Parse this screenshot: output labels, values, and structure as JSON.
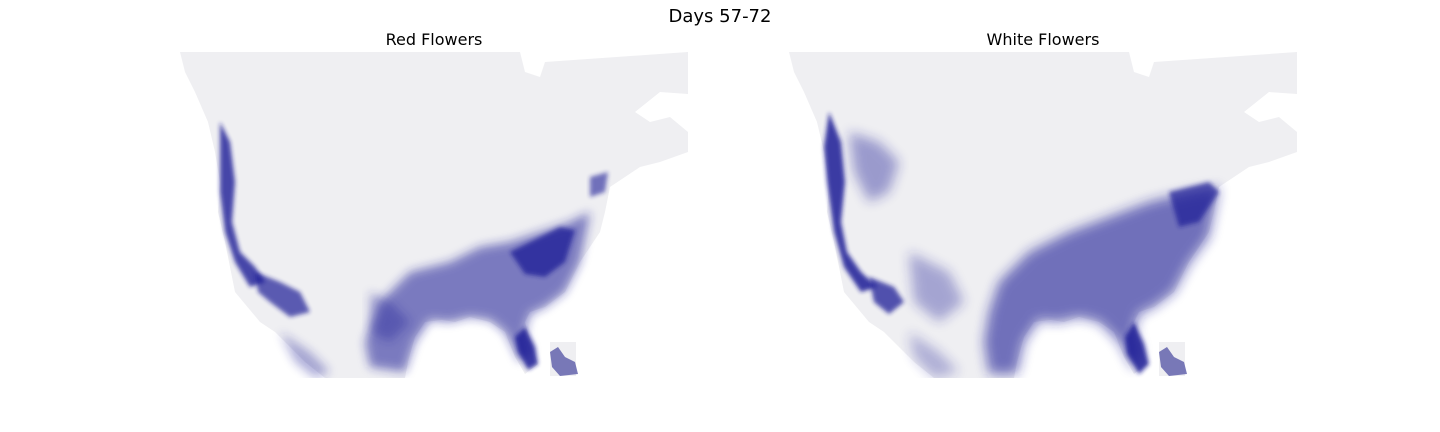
{
  "figure": {
    "suptitle": "Days 57-72"
  },
  "panels": [
    {
      "title": "Red Flowers"
    },
    {
      "title": "White Flowers"
    }
  ],
  "colors": {
    "land_background": "#efeff2",
    "water": "#ffffff",
    "intensity": "#1a1a96"
  }
}
